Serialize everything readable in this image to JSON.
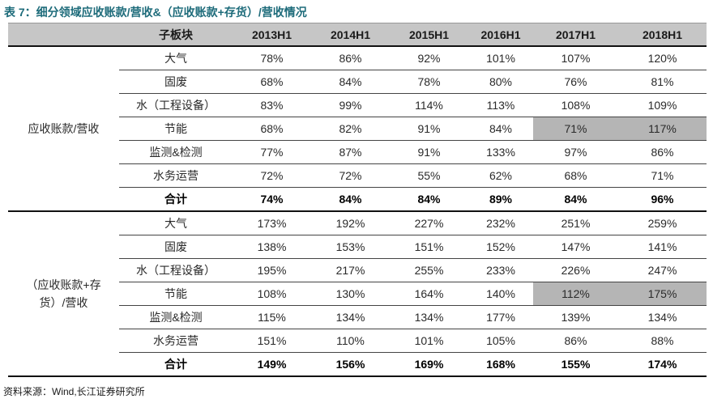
{
  "title": "表 7：细分领域应收账款/营收&（应收账款+存货）/营收情况",
  "source": "资料来源：Wind,长江证券研究所",
  "colors": {
    "title_accent": "#1D6B7A",
    "header_bg": "#C6C6C6",
    "highlight_bg": "#B5B5B5"
  },
  "table": {
    "header": {
      "sub_sector": "子板块",
      "periods": [
        "2013H1",
        "2014H1",
        "2015H1",
        "2016H1",
        "2017H1",
        "2018H1"
      ]
    },
    "groups": [
      {
        "label": "应收账款/营收",
        "rows": [
          {
            "name": "大气",
            "values": [
              "78%",
              "86%",
              "92%",
              "101%",
              "107%",
              "120%"
            ]
          },
          {
            "name": "固废",
            "values": [
              "68%",
              "84%",
              "78%",
              "80%",
              "76%",
              "81%"
            ]
          },
          {
            "name": "水（工程设备）",
            "values": [
              "83%",
              "99%",
              "114%",
              "113%",
              "108%",
              "109%"
            ]
          },
          {
            "name": "节能",
            "values": [
              "68%",
              "82%",
              "91%",
              "84%",
              "71%",
              "117%"
            ],
            "highlight_cols": [
              4,
              5
            ]
          },
          {
            "name": "监测&检测",
            "values": [
              "77%",
              "87%",
              "91%",
              "133%",
              "97%",
              "86%"
            ]
          },
          {
            "name": "水务运营",
            "values": [
              "72%",
              "72%",
              "55%",
              "62%",
              "68%",
              "71%"
            ]
          },
          {
            "name": "合计",
            "values": [
              "74%",
              "84%",
              "84%",
              "89%",
              "84%",
              "96%"
            ],
            "bold": true
          }
        ]
      },
      {
        "label": "（应收账款+存货）/营收",
        "rows": [
          {
            "name": "大气",
            "values": [
              "173%",
              "192%",
              "227%",
              "232%",
              "251%",
              "259%"
            ]
          },
          {
            "name": "固废",
            "values": [
              "138%",
              "153%",
              "151%",
              "152%",
              "147%",
              "141%"
            ]
          },
          {
            "name": "水（工程设备）",
            "values": [
              "195%",
              "217%",
              "255%",
              "233%",
              "226%",
              "247%"
            ]
          },
          {
            "name": "节能",
            "values": [
              "108%",
              "130%",
              "164%",
              "140%",
              "112%",
              "175%"
            ],
            "highlight_cols": [
              4,
              5
            ]
          },
          {
            "name": "监测&检测",
            "values": [
              "115%",
              "134%",
              "134%",
              "177%",
              "139%",
              "134%"
            ]
          },
          {
            "name": "水务运营",
            "values": [
              "151%",
              "110%",
              "101%",
              "105%",
              "86%",
              "88%"
            ]
          },
          {
            "name": "合计",
            "values": [
              "149%",
              "156%",
              "169%",
              "168%",
              "155%",
              "174%"
            ],
            "bold": true
          }
        ]
      }
    ]
  }
}
